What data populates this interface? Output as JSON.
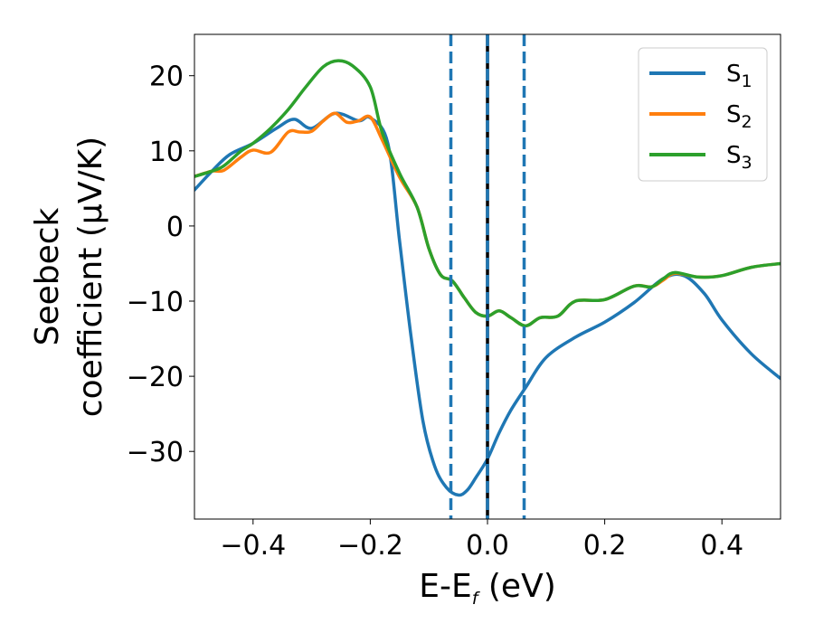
{
  "chart_data": {
    "type": "line",
    "xlabel": {
      "main": "E-E",
      "sub": "f",
      "rest": " (eV)"
    },
    "ylabel": {
      "line1": "Seebeck",
      "line2": "coefficient  (μV/K)"
    },
    "xlim": [
      -0.5,
      0.5
    ],
    "ylim": [
      -39,
      25.5
    ],
    "xticks": [
      -0.4,
      -0.2,
      0.0,
      0.2,
      0.4
    ],
    "xtick_labels": [
      "−0.4",
      "−0.2",
      "0.0",
      "0.2",
      "0.4"
    ],
    "yticks": [
      20,
      10,
      0,
      -10,
      -20,
      -30
    ],
    "ytick_labels": [
      "20",
      "10",
      "0",
      "−10",
      "−20",
      "−30"
    ],
    "grid": false,
    "legend_position": "top-right",
    "vlines": [
      {
        "x": -0.0625,
        "style": "dashed",
        "color": "#1f77b4"
      },
      {
        "x": 0.0,
        "style": "solid",
        "color": "#000000"
      },
      {
        "x": 0.0,
        "style": "dashed",
        "color": "#1f77b4"
      },
      {
        "x": 0.0625,
        "style": "dashed",
        "color": "#1f77b4"
      }
    ],
    "series": [
      {
        "name": "S",
        "sub": "1",
        "color": "#1f77b4",
        "points": [
          [
            -0.5,
            4.8
          ],
          [
            -0.47,
            7.3
          ],
          [
            -0.44,
            9.5
          ],
          [
            -0.4,
            11.0
          ],
          [
            -0.36,
            13.0
          ],
          [
            -0.33,
            14.2
          ],
          [
            -0.3,
            13.0
          ],
          [
            -0.26,
            15.0
          ],
          [
            -0.22,
            14.0
          ],
          [
            -0.2,
            14.4
          ],
          [
            -0.17,
            11.0
          ],
          [
            -0.15,
            -2.0
          ],
          [
            -0.13,
            -15.0
          ],
          [
            -0.11,
            -26.0
          ],
          [
            -0.09,
            -32.0
          ],
          [
            -0.07,
            -34.8
          ],
          [
            -0.05,
            -35.8
          ],
          [
            -0.035,
            -35.2
          ],
          [
            -0.02,
            -33.5
          ],
          [
            0.0,
            -31.0
          ],
          [
            0.02,
            -27.5
          ],
          [
            0.04,
            -24.5
          ],
          [
            0.065,
            -21.5
          ],
          [
            0.1,
            -17.5
          ],
          [
            0.15,
            -14.8
          ],
          [
            0.2,
            -12.8
          ],
          [
            0.25,
            -10.2
          ],
          [
            0.3,
            -7.0
          ],
          [
            0.335,
            -6.6
          ],
          [
            0.37,
            -9.0
          ],
          [
            0.4,
            -12.5
          ],
          [
            0.45,
            -17.0
          ],
          [
            0.5,
            -20.3
          ]
        ]
      },
      {
        "name": "S",
        "sub": "2",
        "color": "#ff7f0e",
        "points": [
          [
            -0.5,
            6.6
          ],
          [
            -0.47,
            7.3
          ],
          [
            -0.45,
            7.4
          ],
          [
            -0.42,
            9.2
          ],
          [
            -0.4,
            10.1
          ],
          [
            -0.37,
            9.8
          ],
          [
            -0.34,
            12.5
          ],
          [
            -0.32,
            12.5
          ],
          [
            -0.3,
            12.6
          ],
          [
            -0.28,
            14.0
          ],
          [
            -0.26,
            15.0
          ],
          [
            -0.24,
            13.8
          ],
          [
            -0.22,
            14.0
          ],
          [
            -0.2,
            14.5
          ],
          [
            -0.18,
            11.5
          ],
          [
            -0.15,
            6.5
          ],
          [
            -0.12,
            2.5
          ],
          [
            -0.1,
            -3.0
          ],
          [
            -0.08,
            -6.5
          ],
          [
            -0.06,
            -7.3
          ],
          [
            -0.04,
            -9.5
          ],
          [
            -0.02,
            -11.5
          ],
          [
            0.0,
            -12.0
          ],
          [
            0.02,
            -11.3
          ],
          [
            0.04,
            -12.2
          ],
          [
            0.065,
            -13.3
          ],
          [
            0.09,
            -12.2
          ],
          [
            0.12,
            -12.0
          ],
          [
            0.15,
            -10.0
          ],
          [
            0.2,
            -9.8
          ],
          [
            0.25,
            -8.0
          ],
          [
            0.28,
            -8.1
          ],
          [
            0.3,
            -7.2
          ],
          [
            0.32,
            -6.3
          ],
          [
            0.36,
            -6.8
          ],
          [
            0.4,
            -6.6
          ],
          [
            0.45,
            -5.5
          ],
          [
            0.5,
            -5.0
          ]
        ]
      },
      {
        "name": "S",
        "sub": "3",
        "color": "#2ca02c",
        "points": [
          [
            -0.5,
            6.6
          ],
          [
            -0.47,
            7.3
          ],
          [
            -0.45,
            8.0
          ],
          [
            -0.42,
            10.0
          ],
          [
            -0.4,
            11.0
          ],
          [
            -0.37,
            13.0
          ],
          [
            -0.34,
            15.5
          ],
          [
            -0.31,
            18.5
          ],
          [
            -0.28,
            21.2
          ],
          [
            -0.255,
            22.0
          ],
          [
            -0.23,
            21.3
          ],
          [
            -0.2,
            18.5
          ],
          [
            -0.18,
            12.5
          ],
          [
            -0.15,
            7.0
          ],
          [
            -0.12,
            2.5
          ],
          [
            -0.1,
            -3.0
          ],
          [
            -0.08,
            -6.5
          ],
          [
            -0.06,
            -7.3
          ],
          [
            -0.04,
            -9.5
          ],
          [
            -0.02,
            -11.5
          ],
          [
            0.0,
            -12.0
          ],
          [
            0.02,
            -11.3
          ],
          [
            0.04,
            -12.2
          ],
          [
            0.065,
            -13.3
          ],
          [
            0.09,
            -12.2
          ],
          [
            0.12,
            -12.0
          ],
          [
            0.15,
            -10.0
          ],
          [
            0.2,
            -9.8
          ],
          [
            0.25,
            -8.0
          ],
          [
            0.28,
            -8.1
          ],
          [
            0.3,
            -7.0
          ],
          [
            0.32,
            -6.2
          ],
          [
            0.36,
            -6.8
          ],
          [
            0.4,
            -6.6
          ],
          [
            0.45,
            -5.5
          ],
          [
            0.5,
            -5.0
          ]
        ]
      }
    ]
  }
}
